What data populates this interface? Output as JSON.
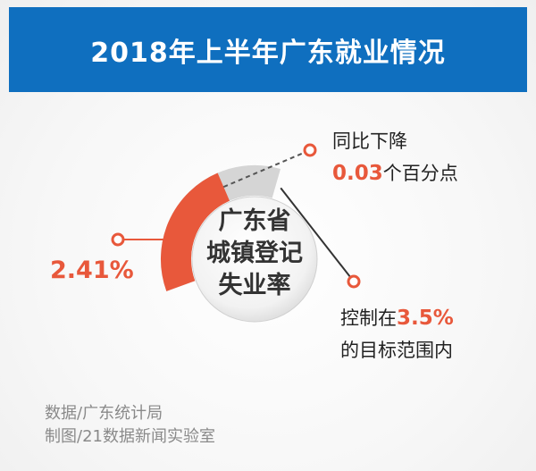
{
  "header": {
    "title": "2018年上半年广东就业情况"
  },
  "chart_data": {
    "type": "gauge",
    "title": "2018年上半年广东就业情况",
    "center_label_lines": [
      "广东省",
      "城镇登记",
      "失业率"
    ],
    "value": 2.41,
    "value_label": "2.41%",
    "target": 3.5,
    "change": -0.03,
    "annotations": {
      "change_line1": "同比下降",
      "change_value": "0.03",
      "change_unit": "个百分点",
      "target_prefix": "控制在",
      "target_value": "3.5%",
      "target_suffix": "的目标范围内"
    }
  },
  "footer": {
    "source": "数据/广东统计局",
    "credit": "制图/21数据新闻实验室"
  },
  "colors": {
    "header_bg": "#0f6fbf",
    "value_arc": "#e8583b",
    "target_arc": "#d5d5d5",
    "highlight_text": "#e8583b"
  }
}
